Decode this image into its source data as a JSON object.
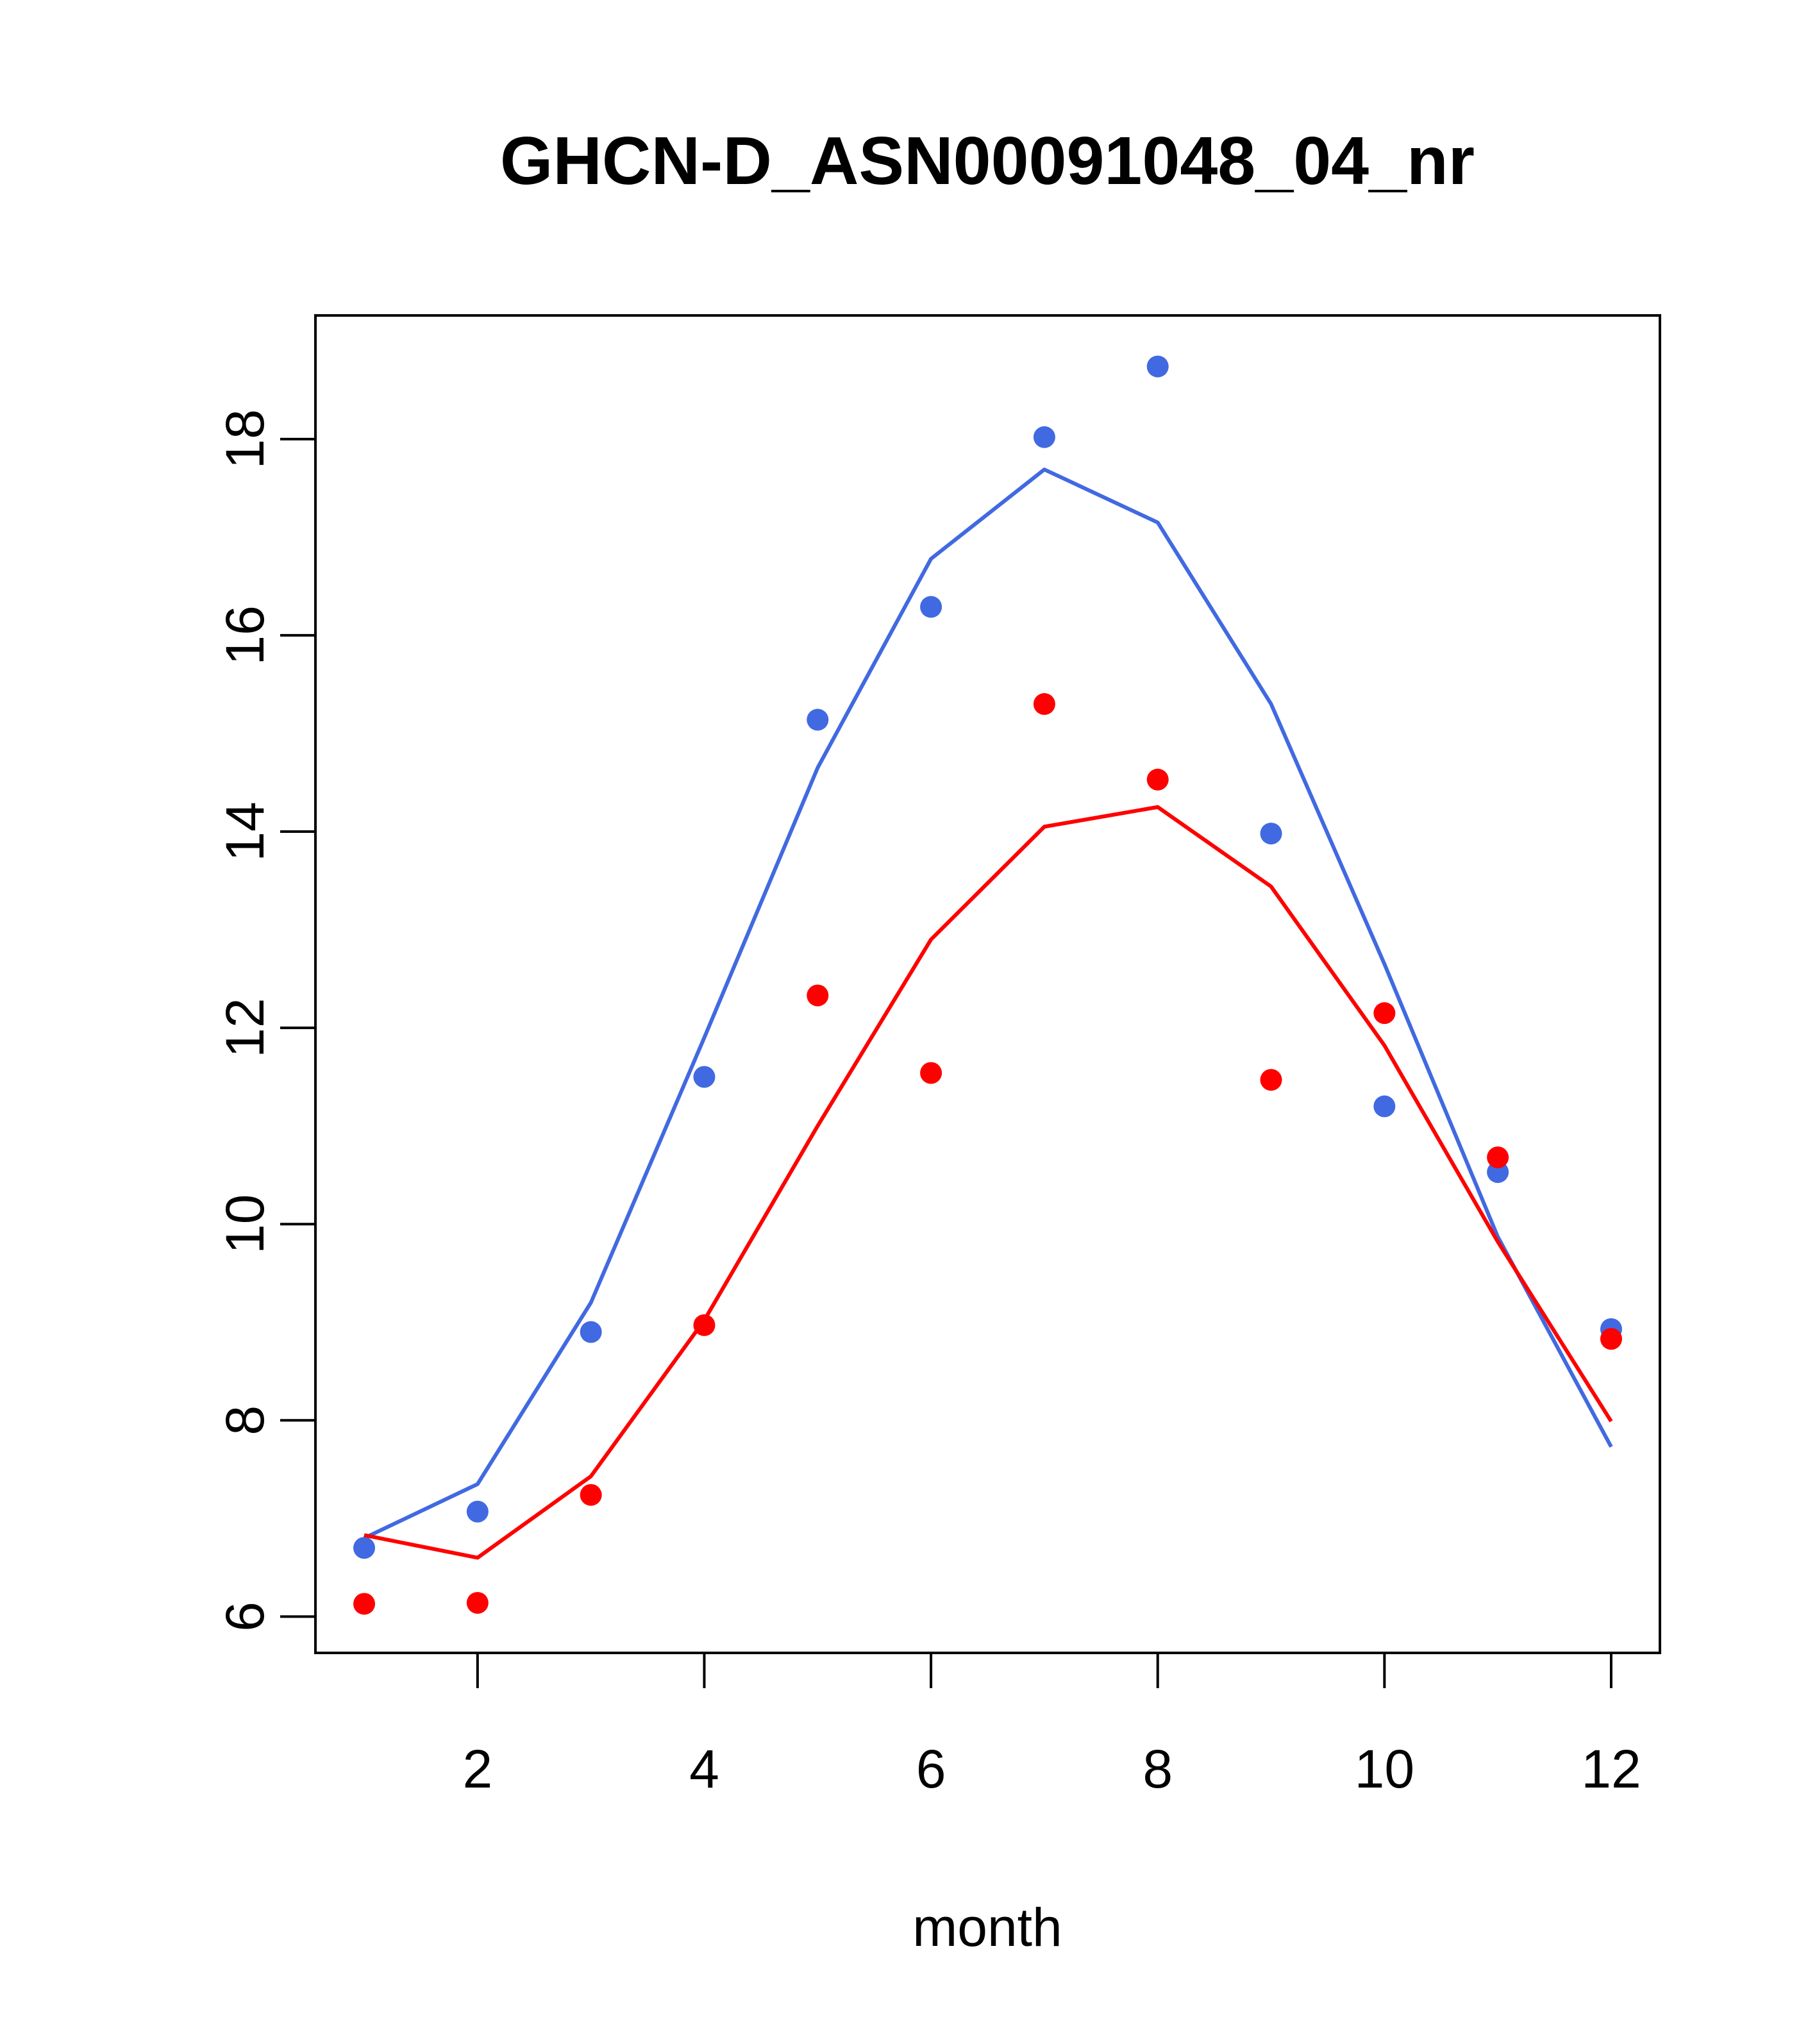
{
  "chart_data": {
    "type": "line",
    "title": "GHCN-D_ASN00091048_04_nr",
    "xlabel": "month",
    "ylabel": "",
    "xlim": [
      0.57,
      12.43
    ],
    "ylim": [
      5.63,
      19.26
    ],
    "x_ticks": [
      2,
      4,
      6,
      8,
      10,
      12
    ],
    "y_ticks": [
      6,
      8,
      10,
      12,
      14,
      16,
      18
    ],
    "grid": false,
    "x": [
      1,
      2,
      3,
      4,
      5,
      6,
      7,
      8,
      9,
      10,
      11,
      12
    ],
    "series": [
      {
        "color": "#4169E1",
        "points": [
          6.7,
          7.07,
          8.9,
          11.5,
          15.14,
          16.29,
          18.02,
          18.74,
          13.98,
          11.2,
          10.53,
          8.93
        ],
        "line": [
          6.8,
          7.35,
          9.2,
          11.9,
          14.65,
          16.78,
          17.69,
          17.15,
          15.3,
          12.65,
          9.87,
          7.73
        ]
      },
      {
        "color": "#FF0000",
        "points": [
          6.13,
          6.14,
          7.24,
          8.97,
          12.33,
          11.54,
          15.3,
          14.53,
          11.47,
          12.15,
          10.68,
          8.83
        ],
        "line": [
          6.83,
          6.6,
          7.43,
          9.02,
          11.0,
          12.9,
          14.05,
          14.25,
          13.44,
          11.82,
          9.82,
          7.99
        ]
      }
    ]
  }
}
